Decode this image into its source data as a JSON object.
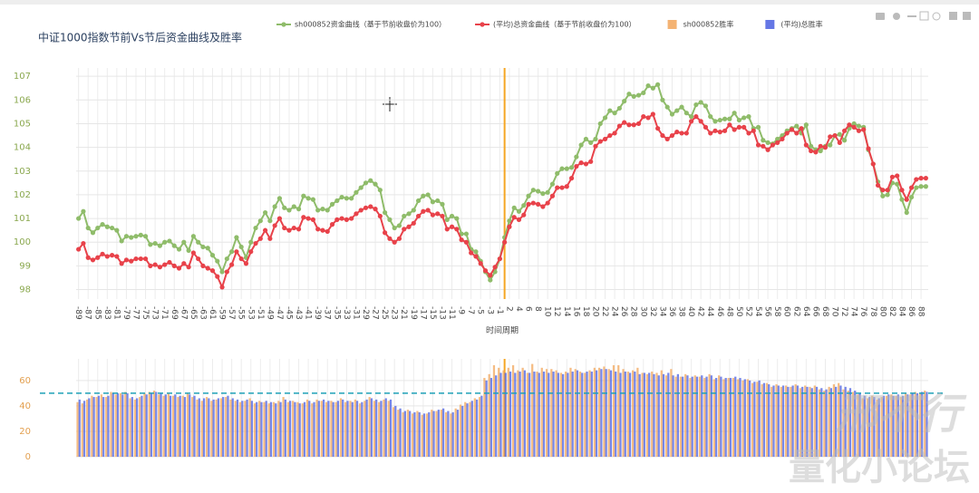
{
  "chart_data": [
    {
      "type": "line",
      "title": "中证1000指数节前Vs节后资金曲线及胜率",
      "xlabel": "时间周期",
      "categories": [
        -89,
        null,
        -87,
        null,
        -85,
        null,
        -83,
        null,
        -81,
        null,
        -79,
        null,
        -77,
        null,
        -75,
        null,
        -73,
        null,
        -71,
        null,
        -69,
        null,
        -67,
        null,
        -65,
        null,
        -63,
        null,
        -61,
        null,
        -59,
        null,
        -57,
        null,
        -55,
        null,
        -53,
        null,
        -51,
        null,
        -49,
        null,
        -47,
        null,
        -45,
        null,
        -43,
        null,
        -41,
        null,
        -39,
        null,
        -37,
        null,
        -35,
        null,
        -33,
        null,
        -31,
        null,
        -29,
        null,
        -27,
        null,
        -25,
        null,
        -23,
        null,
        -21,
        null,
        -19,
        null,
        -17,
        null,
        -15,
        null,
        -13,
        null,
        -11,
        null,
        -9,
        null,
        -7,
        null,
        -5,
        null,
        -3,
        null,
        -1,
        null,
        2,
        null,
        4,
        null,
        6,
        null,
        8,
        null,
        10,
        null,
        12,
        null,
        14,
        null,
        16,
        null,
        18,
        null,
        20,
        null,
        22,
        null,
        24,
        null,
        26,
        null,
        28,
        null,
        30,
        null,
        32,
        null,
        34,
        null,
        36,
        null,
        38,
        null,
        40,
        null,
        42,
        null,
        44,
        null,
        46,
        null,
        48,
        null,
        50,
        null,
        52,
        null,
        54,
        null,
        56,
        null,
        58,
        null,
        60,
        null,
        62,
        null,
        64,
        null,
        66,
        null,
        68,
        null,
        70,
        null,
        72,
        null,
        74,
        null,
        76,
        null,
        78,
        null,
        80,
        null,
        82,
        null,
        84,
        null,
        86,
        null,
        88,
        null
      ],
      "series": [
        {
          "name": "sh000852资金曲线（基于节前收盘价为100）",
          "color": "#8fbc6a",
          "values": [
            101.0,
            101.3,
            100.6,
            100.4,
            100.6,
            100.75,
            100.65,
            100.6,
            100.5,
            100.05,
            100.25,
            100.2,
            100.25,
            100.3,
            100.25,
            99.9,
            99.95,
            99.85,
            100.0,
            100.05,
            99.85,
            99.7,
            100.0,
            99.65,
            100.25,
            100.0,
            99.8,
            99.75,
            99.45,
            99.2,
            98.75,
            99.3,
            99.6,
            100.2,
            99.8,
            99.35,
            100.0,
            100.6,
            100.9,
            101.25,
            100.9,
            101.5,
            101.85,
            101.45,
            101.35,
            101.5,
            101.4,
            101.95,
            101.85,
            101.8,
            101.35,
            101.4,
            101.35,
            101.6,
            101.75,
            101.9,
            101.85,
            101.85,
            102.1,
            102.3,
            102.5,
            102.6,
            102.45,
            102.2,
            101.25,
            100.95,
            100.6,
            100.7,
            101.1,
            101.2,
            101.35,
            101.75,
            101.95,
            102.0,
            101.7,
            101.75,
            101.6,
            100.95,
            101.1,
            101.0,
            100.35,
            100.35,
            99.7,
            99.6,
            99.2,
            98.75,
            98.4,
            98.75,
            99.3,
            100.2,
            100.9,
            101.45,
            101.3,
            101.55,
            101.95,
            102.2,
            102.15,
            102.05,
            102.1,
            102.45,
            102.9,
            103.1,
            103.1,
            103.15,
            103.6,
            104.1,
            104.35,
            104.2,
            104.35,
            105.0,
            105.25,
            105.55,
            105.45,
            105.65,
            105.95,
            106.25,
            106.15,
            106.2,
            106.3,
            106.6,
            106.5,
            106.65,
            106.0,
            105.7,
            105.4,
            105.55,
            105.7,
            105.45,
            105.3,
            105.8,
            105.9,
            105.75,
            105.3,
            105.1,
            105.15,
            105.2,
            105.2,
            105.45,
            105.15,
            105.25,
            105.3,
            104.8,
            104.85,
            104.3,
            104.2,
            104.15,
            104.35,
            104.5,
            104.7,
            104.8,
            104.9,
            104.6,
            104.95,
            104.05,
            103.9,
            103.85,
            104.05,
            104.1,
            104.5,
            104.55,
            104.3,
            104.8,
            105.0,
            104.9,
            104.85,
            103.9,
            103.3,
            102.55,
            101.95,
            102.0,
            102.5,
            102.45,
            101.8,
            101.25,
            101.9,
            102.3,
            102.35,
            102.35
          ]
        },
        {
          "name": "(平均)总资金曲线（基于节前收盘价为100）",
          "color": "#e8424a",
          "values": [
            99.7,
            99.95,
            99.35,
            99.25,
            99.35,
            99.5,
            99.4,
            99.45,
            99.4,
            99.1,
            99.25,
            99.2,
            99.3,
            99.3,
            99.3,
            99.0,
            99.05,
            98.95,
            99.05,
            99.15,
            99.0,
            98.9,
            99.1,
            98.95,
            99.55,
            99.3,
            99.0,
            98.9,
            98.8,
            98.55,
            98.1,
            98.75,
            99.05,
            99.6,
            99.3,
            99.1,
            99.6,
            99.95,
            100.15,
            100.5,
            100.15,
            100.7,
            101.0,
            100.6,
            100.5,
            100.6,
            100.55,
            101.05,
            101.0,
            100.95,
            100.55,
            100.5,
            100.45,
            100.75,
            100.95,
            101.0,
            100.95,
            101.0,
            101.2,
            101.35,
            101.45,
            101.5,
            101.4,
            101.1,
            100.4,
            100.15,
            100.0,
            100.15,
            100.55,
            100.65,
            100.8,
            101.1,
            101.3,
            101.35,
            101.15,
            101.2,
            101.1,
            100.55,
            100.65,
            100.55,
            100.1,
            100.0,
            99.55,
            99.4,
            99.1,
            98.8,
            98.6,
            98.95,
            99.3,
            100.0,
            100.65,
            101.05,
            100.95,
            101.15,
            101.6,
            101.65,
            101.6,
            101.5,
            101.65,
            101.95,
            102.3,
            102.3,
            102.35,
            102.7,
            103.2,
            103.35,
            103.3,
            103.4,
            104.05,
            104.25,
            104.35,
            104.5,
            104.6,
            104.9,
            105.05,
            104.95,
            104.95,
            105.0,
            105.3,
            105.25,
            105.4,
            104.8,
            104.5,
            104.35,
            104.5,
            104.65,
            104.6,
            104.6,
            105.1,
            105.3,
            105.1,
            104.85,
            104.6,
            104.7,
            104.65,
            104.7,
            104.95,
            104.75,
            104.85,
            104.85,
            104.6,
            104.7,
            104.1,
            104.05,
            103.9,
            104.1,
            104.2,
            104.35,
            104.6,
            104.75,
            104.6,
            104.8,
            104.1,
            103.85,
            103.8,
            104.05,
            104.0,
            104.45,
            104.5,
            104.2,
            104.7,
            104.95,
            104.85,
            104.7,
            104.75,
            103.95,
            103.3,
            102.4,
            102.2,
            102.2,
            102.75,
            102.8,
            102.2,
            101.8,
            102.3,
            102.65,
            102.7,
            102.7
          ]
        }
      ],
      "ylim": [
        97.6,
        107.35
      ],
      "yticks": [
        98,
        99,
        100,
        101,
        102,
        103,
        104,
        105,
        106,
        107
      ],
      "grid": true,
      "vline": 1,
      "vline_color": "#f5a623"
    },
    {
      "type": "bar",
      "series": [
        {
          "name": "sh000852胜率",
          "color": "#f2a65a",
          "values": [
            43,
            42,
            45,
            48,
            47,
            49,
            47,
            51,
            49,
            50,
            51,
            46,
            45,
            47,
            50,
            51,
            52,
            49,
            48,
            50,
            48,
            47,
            48,
            50,
            47,
            45,
            44,
            47,
            44,
            45,
            46,
            47,
            45,
            44,
            43,
            44,
            46,
            42,
            44,
            43,
            42,
            43,
            44,
            47,
            43,
            44,
            43,
            42,
            45,
            42,
            45,
            44,
            43,
            44,
            43,
            46,
            43,
            44,
            45,
            42,
            44,
            47,
            44,
            43,
            45,
            44,
            39,
            37,
            35,
            37,
            34,
            36,
            33,
            34,
            37,
            36,
            37,
            35,
            34,
            38,
            41,
            43,
            43,
            46,
            47,
            62,
            65,
            72,
            70,
            68,
            70,
            72,
            68,
            70,
            66,
            73,
            67,
            70,
            69,
            69,
            68,
            66,
            67,
            70,
            69,
            67,
            66,
            68,
            70,
            70,
            71,
            69,
            72,
            72,
            69,
            67,
            68,
            70,
            66,
            65,
            67,
            66,
            68,
            64,
            69,
            63,
            63,
            65,
            62,
            64,
            63,
            62,
            65,
            61,
            64,
            61,
            62,
            62,
            61,
            60,
            61,
            58,
            59,
            57,
            58,
            55,
            57,
            55,
            56,
            55,
            57,
            54,
            56,
            55,
            56,
            53,
            52,
            55,
            57,
            58,
            53,
            52,
            51,
            49,
            46,
            46,
            48,
            45,
            47,
            48,
            49,
            48,
            47,
            50,
            49,
            51,
            50,
            52
          ]
        },
        {
          "name": "(平均)总胜率",
          "color": "#4a5fe0",
          "values": [
            45,
            44,
            46,
            47,
            48,
            47,
            48,
            50,
            50,
            49,
            50,
            47,
            46,
            48,
            49,
            50,
            51,
            50,
            49,
            48,
            49,
            48,
            47,
            49,
            48,
            46,
            46,
            46,
            45,
            46,
            47,
            48,
            46,
            45,
            44,
            45,
            44,
            43,
            43,
            44,
            43,
            42,
            43,
            45,
            44,
            43,
            42,
            43,
            44,
            43,
            44,
            45,
            44,
            43,
            44,
            45,
            44,
            43,
            44,
            43,
            45,
            46,
            45,
            44,
            46,
            45,
            40,
            38,
            36,
            36,
            35,
            35,
            34,
            35,
            36,
            37,
            38,
            36,
            35,
            37,
            40,
            42,
            44,
            45,
            48,
            60,
            62,
            64,
            66,
            66,
            67,
            66,
            67,
            68,
            66,
            67,
            66,
            67,
            66,
            67,
            66,
            65,
            66,
            67,
            68,
            66,
            67,
            67,
            68,
            69,
            69,
            68,
            67,
            66,
            67,
            66,
            67,
            65,
            66,
            66,
            65,
            64,
            65,
            66,
            64,
            65,
            63,
            64,
            63,
            63,
            64,
            63,
            64,
            62,
            63,
            62,
            62,
            63,
            62,
            61,
            60,
            59,
            60,
            58,
            57,
            56,
            56,
            56,
            55,
            56,
            56,
            55,
            55,
            54,
            55,
            54,
            53,
            54,
            55,
            56,
            55,
            54,
            52,
            50,
            48,
            47,
            47,
            46,
            48,
            49,
            48,
            49,
            48,
            49,
            50,
            50,
            51,
            51
          ]
        }
      ],
      "ylim": [
        0,
        77
      ],
      "yticks": [
        0,
        20,
        40,
        60
      ],
      "grid": true,
      "hline": 50,
      "hline_color": "#1fa0b8"
    }
  ],
  "watermark": [
    "邢不行",
    "量化小论坛"
  ]
}
